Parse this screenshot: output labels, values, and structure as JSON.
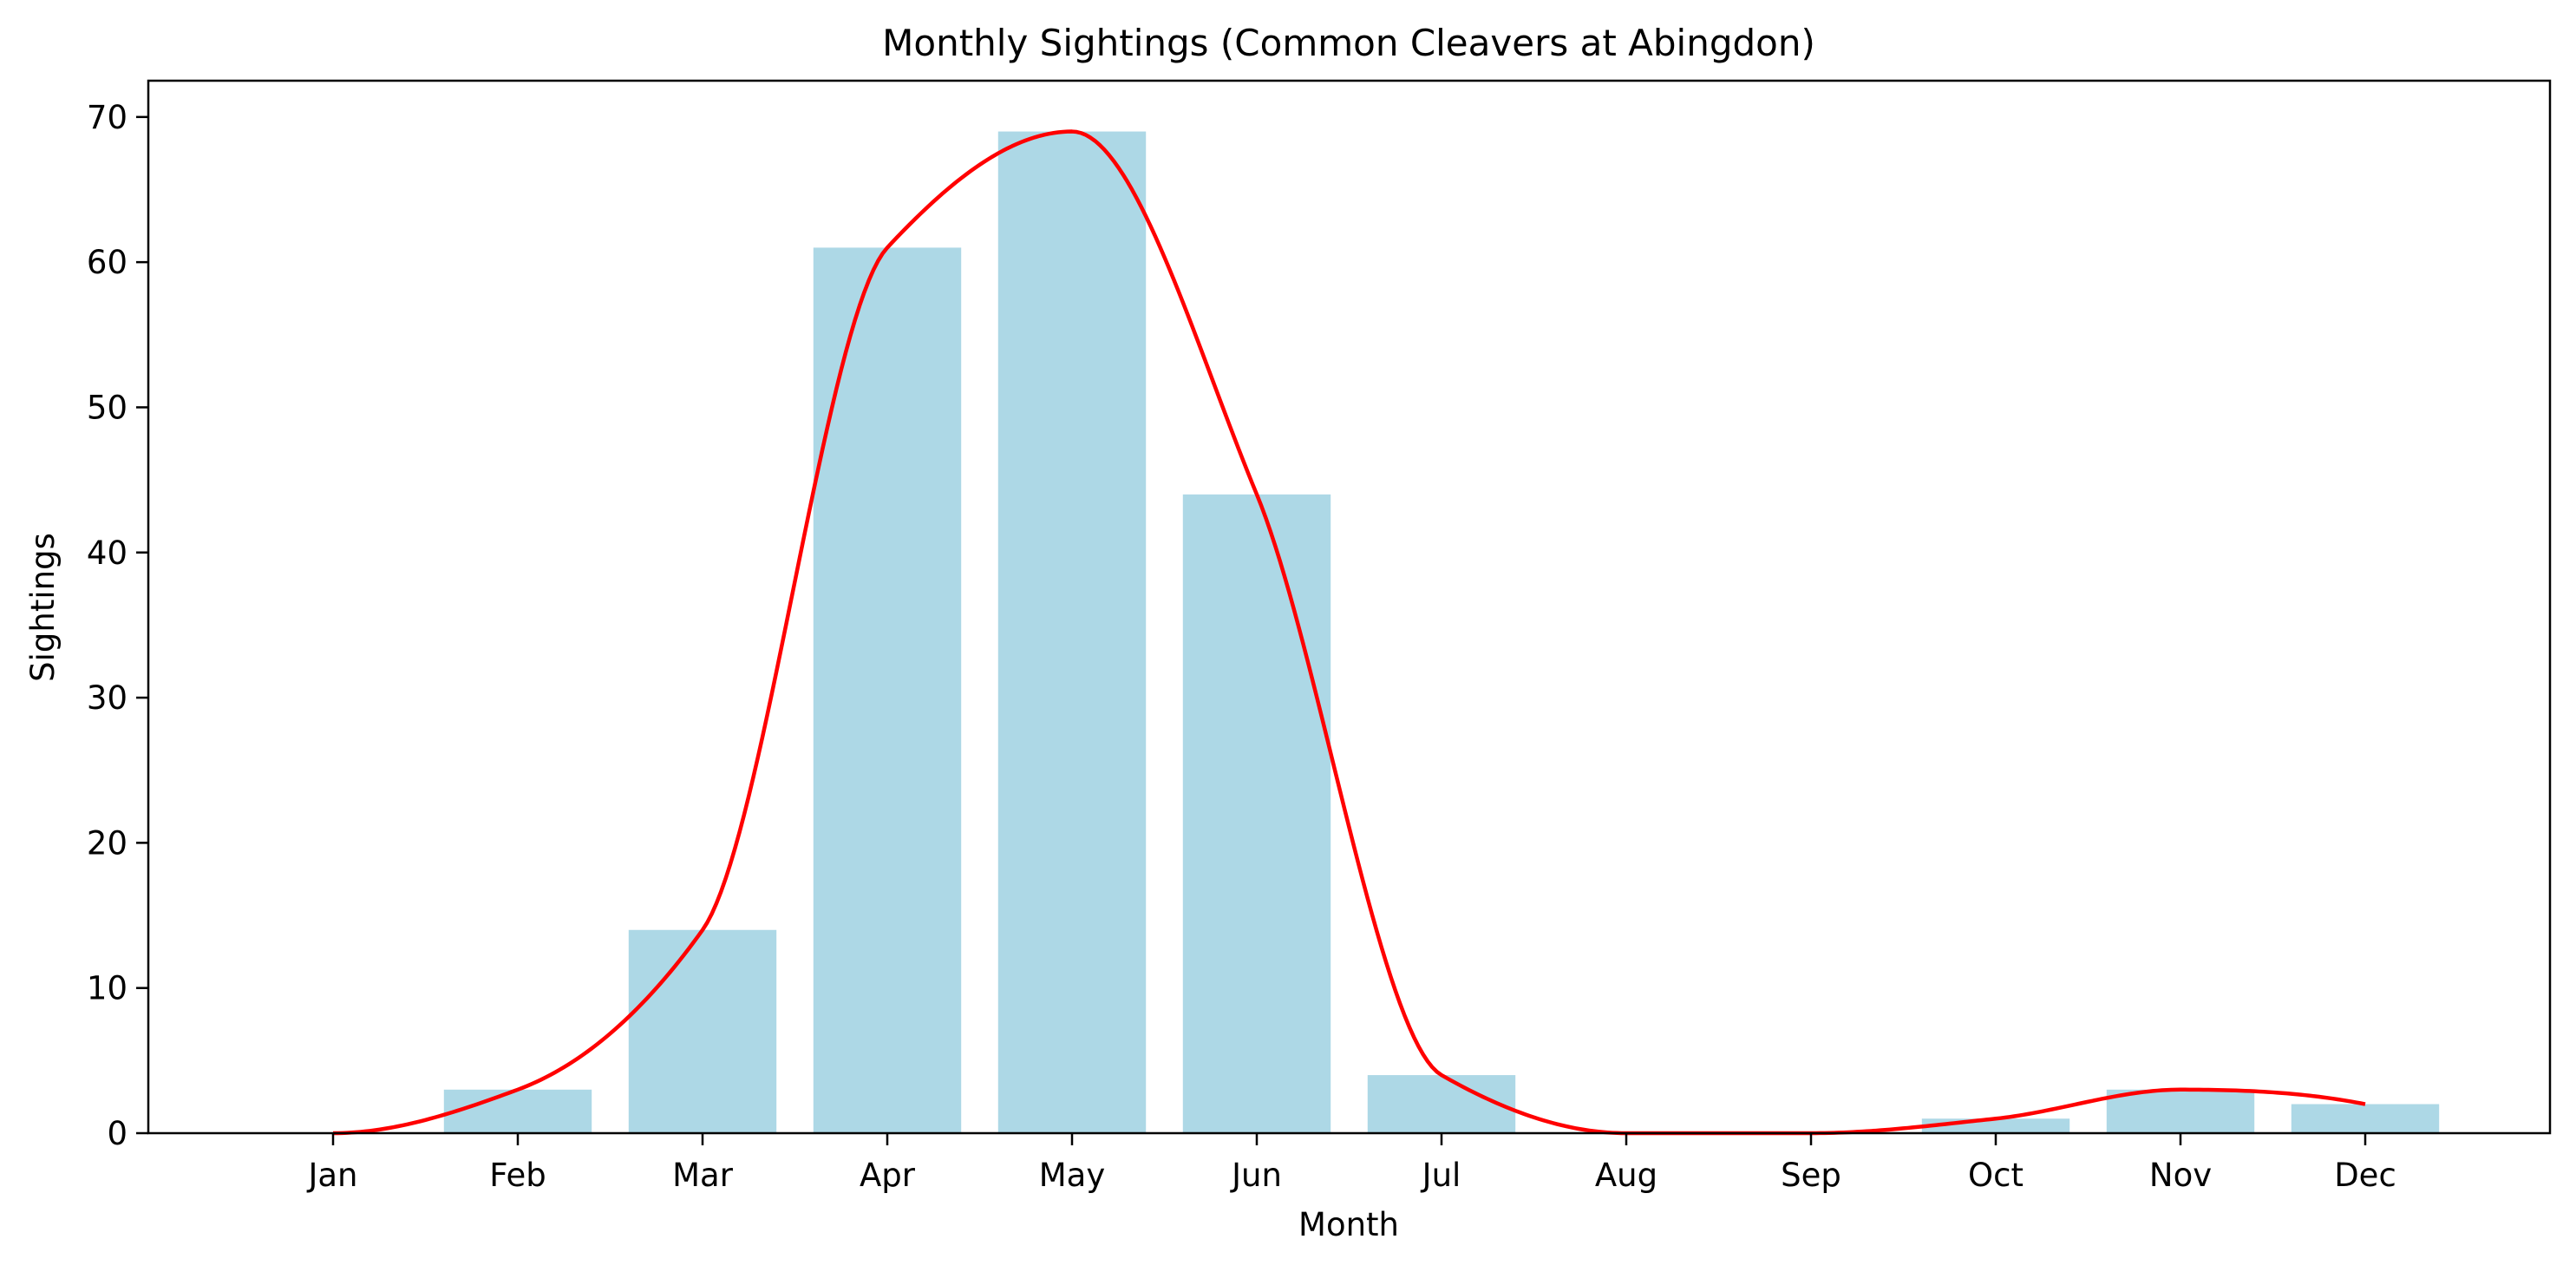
{
  "chart_data": {
    "type": "bar",
    "title": "Monthly Sightings (Common Cleavers at Abingdon)",
    "xlabel": "Month",
    "ylabel": "Sightings",
    "categories": [
      "Jan",
      "Feb",
      "Mar",
      "Apr",
      "May",
      "Jun",
      "Jul",
      "Aug",
      "Sep",
      "Oct",
      "Nov",
      "Dec"
    ],
    "series": [
      {
        "type": "bar",
        "values": [
          0,
          3,
          14,
          61,
          69,
          44,
          4,
          0,
          0,
          1,
          3,
          2
        ],
        "color": "#add8e6"
      },
      {
        "type": "line",
        "smooth": true,
        "values": [
          0,
          3,
          14,
          61,
          69,
          44,
          4,
          0,
          0,
          1,
          3,
          2
        ],
        "color": "#ff0000"
      }
    ],
    "ylim": [
      0,
      72.5
    ],
    "yticks": [
      0,
      10,
      20,
      30,
      40,
      50,
      60,
      70
    ],
    "grid": false,
    "legend": false
  }
}
